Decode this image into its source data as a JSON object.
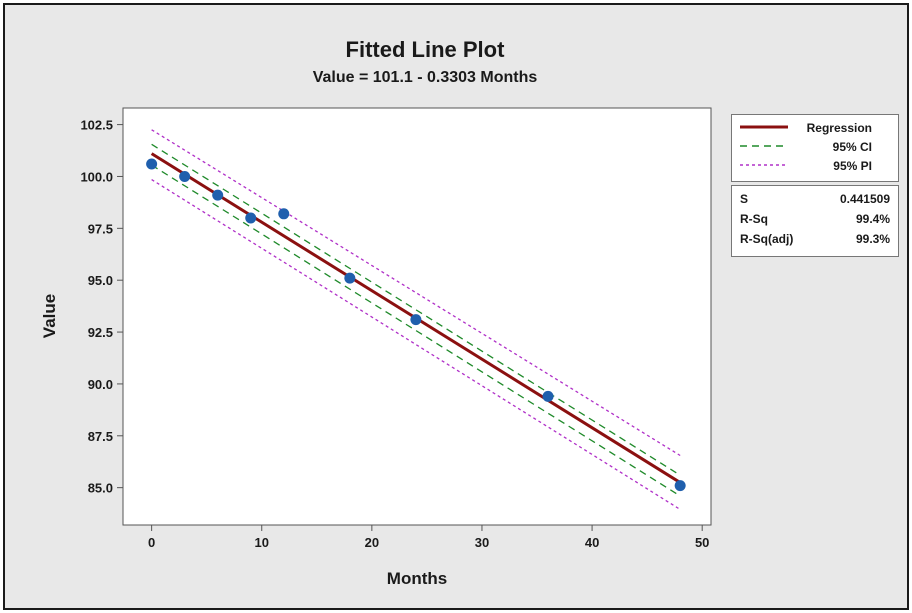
{
  "chart_data": {
    "type": "scatter",
    "title": "Fitted Line Plot",
    "subtitle": "Value = 101.1 - 0.3303 Months",
    "xlabel": "Months",
    "ylabel": "Value",
    "xlim": [
      -2.6,
      50.8
    ],
    "ylim": [
      83.2,
      103.3
    ],
    "x_ticks": [
      0,
      10,
      20,
      30,
      40,
      50
    ],
    "y_ticks": [
      85.0,
      87.5,
      90.0,
      92.5,
      95.0,
      97.5,
      100.0,
      102.5
    ],
    "x_tick_labels": [
      "0",
      "10",
      "20",
      "30",
      "40",
      "50"
    ],
    "y_tick_labels": [
      "85.0",
      "87.5",
      "90.0",
      "92.5",
      "95.0",
      "97.5",
      "100.0",
      "102.5"
    ],
    "grid": false,
    "points": {
      "x": [
        0,
        3,
        6,
        9,
        12,
        18,
        24,
        36,
        48
      ],
      "y": [
        100.6,
        100.0,
        99.1,
        98.0,
        98.2,
        95.1,
        93.1,
        89.4,
        85.1
      ]
    },
    "regression": {
      "intercept": 101.1,
      "slope": -0.3303,
      "x_range": [
        0,
        48
      ]
    },
    "ci_95": {
      "upper": [
        [
          0,
          101.55
        ],
        [
          48,
          85.6
        ]
      ],
      "lower": [
        [
          0,
          100.55
        ],
        [
          48,
          84.6
        ]
      ]
    },
    "pi_95": {
      "upper": [
        [
          0,
          102.25
        ],
        [
          48,
          86.55
        ]
      ],
      "lower": [
        [
          0,
          99.85
        ],
        [
          48,
          83.95
        ]
      ]
    },
    "colors": {
      "background": "#e8e8e8",
      "plot_area": "#ffffff",
      "points": "#1f5fad",
      "regression": "#8b1010",
      "ci": "#1f8a2a",
      "pi": "#b030c8"
    },
    "legend": {
      "placement": "top-right outside",
      "entries": [
        {
          "label": "Regression",
          "style": "solid",
          "color": "#8b1010"
        },
        {
          "label": "95% CI",
          "style": "dashed",
          "color": "#1f8a2a"
        },
        {
          "label": "95% PI",
          "style": "dotted",
          "color": "#b030c8"
        }
      ]
    },
    "stats": [
      {
        "name": "S",
        "value": "0.441509"
      },
      {
        "name": "R-Sq",
        "value": "99.4%"
      },
      {
        "name": "R-Sq(adj)",
        "value": "99.3%"
      }
    ]
  }
}
